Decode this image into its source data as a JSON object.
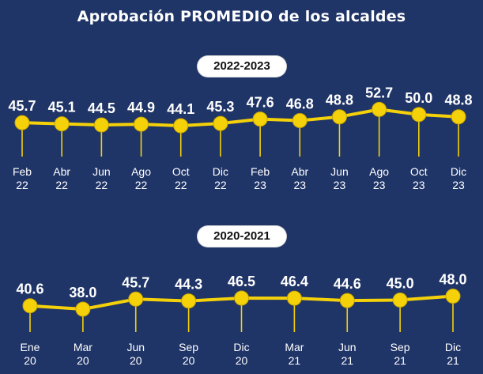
{
  "title": "Aprobación  PROMEDIO  de los alcaldes",
  "colors": {
    "background": "#1f3467",
    "line": "#f5d10a",
    "marker": "#f5d10a",
    "text": "#ffffff"
  },
  "chart_data": [
    {
      "type": "line",
      "period_label": "2022-2023",
      "categories": [
        "Feb\n22",
        "Abr\n22",
        "Jun\n22",
        "Ago\n22",
        "Oct\n22",
        "Dic\n22",
        "Feb\n23",
        "Abr\n23",
        "Jun\n23",
        "Ago\n23",
        "Oct\n23",
        "Dic\n23"
      ],
      "values": [
        45.7,
        45.1,
        44.5,
        44.9,
        44.1,
        45.3,
        47.6,
        46.8,
        48.8,
        52.7,
        50.0,
        48.8
      ],
      "value_labels": [
        "45.7",
        "45.1",
        "44.5",
        "44.9",
        "44.1",
        "45.3",
        "47.6",
        "46.8",
        "48.8",
        "52.7",
        "50.0",
        "48.8"
      ]
    },
    {
      "type": "line",
      "period_label": "2020-2021",
      "categories": [
        "Ene\n20",
        "Mar\n20",
        "Jun\n20",
        "Sep\n20",
        "Dic\n20",
        "Mar\n21",
        "Jun\n21",
        "Sep\n21",
        "Dic\n21"
      ],
      "values": [
        40.6,
        38.0,
        45.7,
        44.3,
        46.5,
        46.4,
        44.6,
        45.0,
        48.0
      ],
      "value_labels": [
        "40.6",
        "38.0",
        "45.7",
        "44.3",
        "46.5",
        "46.4",
        "44.6",
        "45.0",
        "48.0"
      ]
    }
  ]
}
